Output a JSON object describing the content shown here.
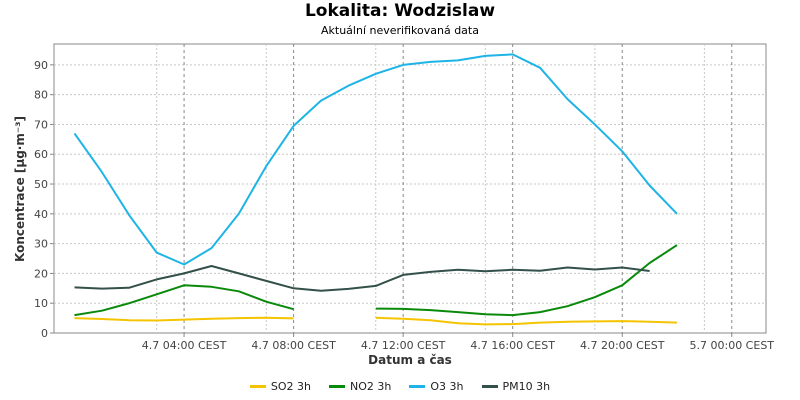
{
  "header": {
    "title": "Lokalita: Wodzislaw",
    "subtitle": "Aktuální neverifikovaná data"
  },
  "chart_data": {
    "type": "line",
    "title": "Lokalita: Wodzislaw",
    "subtitle": "Aktuální neverifikovaná data",
    "xlabel": "Datum a čas",
    "ylabel": "Koncentrace [µg·m⁻³]",
    "x_range_hours": [
      -0.75,
      25.25
    ],
    "ylim": [
      0,
      97
    ],
    "y_ticks": [
      0,
      10,
      20,
      30,
      40,
      50,
      60,
      70,
      80,
      90
    ],
    "x_ticks": [
      {
        "hour": 4,
        "label": "4.7 04:00 CEST"
      },
      {
        "hour": 8,
        "label": "4.7 08:00 CEST"
      },
      {
        "hour": 12,
        "label": "4.7 12:00 CEST"
      },
      {
        "hour": 16,
        "label": "4.7 16:00 CEST"
      },
      {
        "hour": 20,
        "label": "4.7 20:00 CEST"
      },
      {
        "hour": 24,
        "label": "5.7 00:00 CEST"
      }
    ],
    "vertical_grid_hours": [
      3,
      7,
      11,
      15,
      19,
      23
    ],
    "x": [
      0,
      1,
      2,
      3,
      4,
      5,
      6,
      7,
      8,
      9,
      10,
      11,
      12,
      13,
      14,
      15,
      16,
      17,
      18,
      19,
      20,
      21,
      22,
      23
    ],
    "grid": true,
    "legend_position": "bottom",
    "series": [
      {
        "name": "SO2 3h",
        "color": "#f5c400",
        "values": [
          5,
          4.7,
          4.3,
          4.2,
          4.5,
          4.8,
          5,
          5.1,
          4.9,
          null,
          null,
          5.1,
          4.8,
          4.3,
          3.3,
          2.9,
          3,
          3.5,
          3.8,
          3.9,
          4,
          3.8,
          3.5,
          null
        ]
      },
      {
        "name": "NO2 3h",
        "color": "#0a8a0a",
        "values": [
          6,
          7.5,
          10,
          13,
          16,
          15.5,
          14,
          10.5,
          8,
          null,
          null,
          8.2,
          8.1,
          7.7,
          7,
          6.3,
          6,
          7,
          9,
          12,
          16,
          23.5,
          29.5,
          null
        ]
      },
      {
        "name": "O3 3h",
        "color": "#1eb4e6",
        "values": [
          67,
          54,
          39.5,
          27,
          23,
          28.5,
          40,
          56,
          69.5,
          78,
          83,
          87,
          90,
          91,
          91.5,
          93,
          93.5,
          89,
          78.5,
          70,
          61,
          49.5,
          40,
          null
        ]
      },
      {
        "name": "PM10 3h",
        "color": "#33504a",
        "values": [
          15.3,
          14.9,
          15.2,
          18,
          20,
          22.5,
          20,
          17.5,
          15,
          14.2,
          14.8,
          15.8,
          19.5,
          20.5,
          21.2,
          20.7,
          21.2,
          20.9,
          22,
          21.3,
          22,
          20.8,
          null,
          null
        ]
      }
    ]
  }
}
